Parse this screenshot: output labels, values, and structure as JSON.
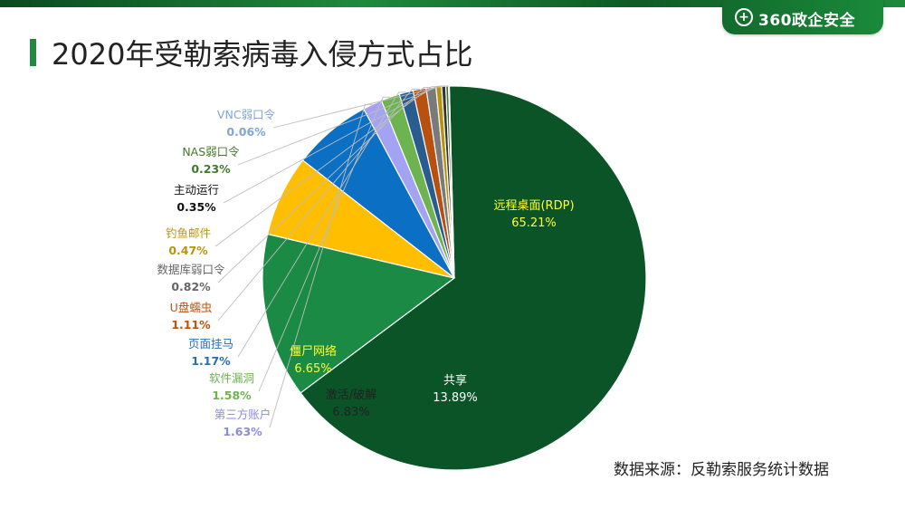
{
  "header": {
    "brand_icon": "+",
    "brand_name": "360政企安全",
    "title": "2020年受勒索病毒入侵方式占比"
  },
  "source": "数据来源：反勒索服务统计数据",
  "chart_data": {
    "type": "pie",
    "title": "2020年受勒索病毒入侵方式占比",
    "unit": "%",
    "series": [
      {
        "name": "远程桌面(RDP)",
        "value": 65.21,
        "label": "65.21%",
        "color": "#0a5428",
        "label_color": "#ffff33"
      },
      {
        "name": "共享",
        "value": 13.89,
        "label": "13.89%",
        "color": "#1a8a45",
        "label_color": "#ffffff"
      },
      {
        "name": "激活/破解",
        "value": 6.83,
        "label": "6.83%",
        "color": "#ffbf00",
        "label_color": "#222222"
      },
      {
        "name": "僵尸网络",
        "value": 6.65,
        "label": "6.65%",
        "color": "#0b6fc4",
        "label_color": "#ffff33"
      },
      {
        "name": "第三方账户",
        "value": 1.63,
        "label": "1.63%",
        "color": "#a4a2f2",
        "label_color": "#8c8ae0"
      },
      {
        "name": "软件漏洞",
        "value": 1.58,
        "label": "1.58%",
        "color": "#6db34f",
        "label_color": "#6db34f"
      },
      {
        "name": "页面挂马",
        "value": 1.17,
        "label": "1.17%",
        "color": "#2a5d8f",
        "label_color": "#2a6db3"
      },
      {
        "name": "U盘蠕虫",
        "value": 1.11,
        "label": "1.11%",
        "color": "#b8500f",
        "label_color": "#c0510a"
      },
      {
        "name": "数据库弱口令",
        "value": 0.82,
        "label": "0.82%",
        "color": "#7a7a7a",
        "label_color": "#666666"
      },
      {
        "name": "钓鱼邮件",
        "value": 0.47,
        "label": "0.47%",
        "color": "#b8940a",
        "label_color": "#b89410"
      },
      {
        "name": "主动运行",
        "value": 0.35,
        "label": "0.35%",
        "color": "#333333",
        "label_color": "#111111"
      },
      {
        "name": "NAS弱口令",
        "value": 0.23,
        "label": "0.23%",
        "color": "#3f7a2a",
        "label_color": "#3f7a2a"
      },
      {
        "name": "VNC弱口令",
        "value": 0.06,
        "label": "0.06%",
        "color": "#8fb0d8",
        "label_color": "#7fa6d6"
      }
    ]
  }
}
